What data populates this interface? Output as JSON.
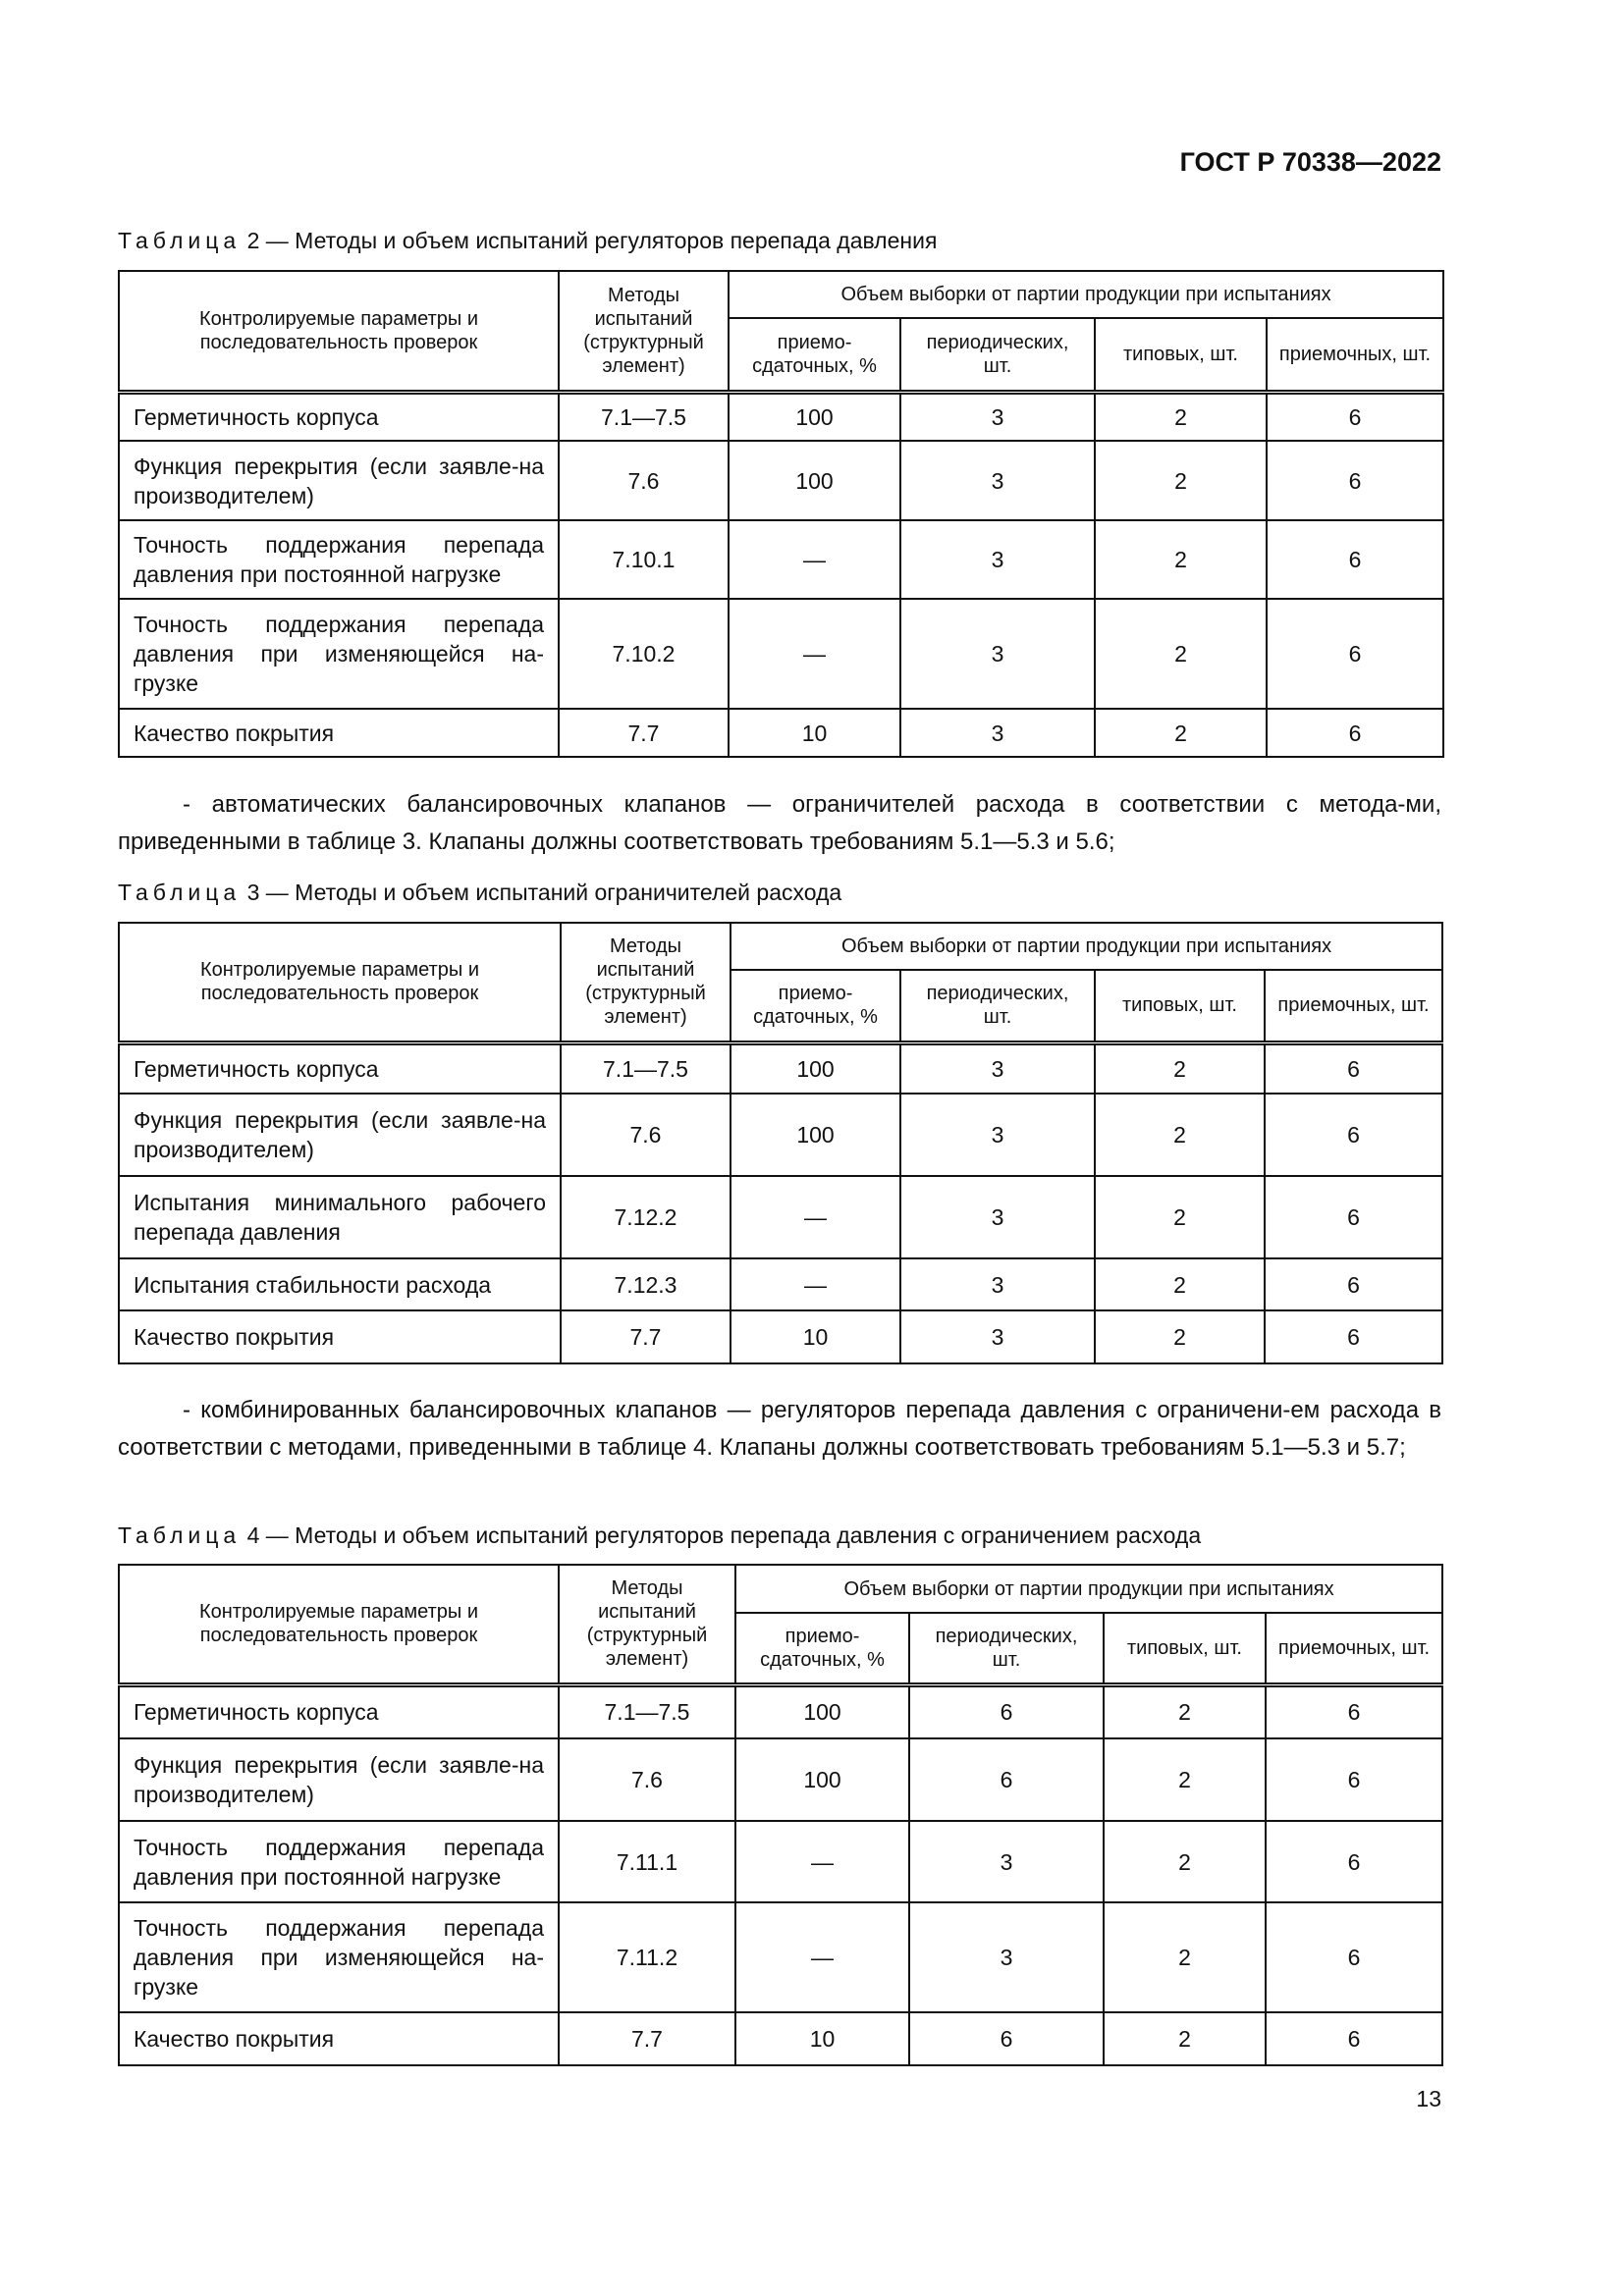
{
  "header": {
    "standard": "ГОСТ Р 70338—2022"
  },
  "page_number": "13",
  "header_labels": {
    "params": "Контролируемые параметры и последовательность проверок",
    "methods": "Методы испытаний (структурный элемент)",
    "volume": "Объем выборки от партии продукции при испытаниях",
    "acceptance": "приемо-сдаточных, %",
    "periodic": "периодических, шт.",
    "type": "типовых, шт.",
    "receiving": "приемочных, шт."
  },
  "tables": [
    {
      "label": "Таблица",
      "number": "2",
      "title": "— Методы и объем испытаний регуляторов перепада давления",
      "rows": [
        [
          "Герметичность корпуса",
          "7.1—7.5",
          "100",
          "3",
          "2",
          "6"
        ],
        [
          "Функция перекрытия (если заявле-на производителем)",
          "7.6",
          "100",
          "3",
          "2",
          "6"
        ],
        [
          "Точность поддержания перепада давления при постоянной нагрузке",
          "7.10.1",
          "—",
          "3",
          "2",
          "6"
        ],
        [
          "Точность поддержания перепада давления при изменяющейся на-грузке",
          "7.10.2",
          "—",
          "3",
          "2",
          "6"
        ],
        [
          "Качество покрытия",
          "7.7",
          "10",
          "3",
          "2",
          "6"
        ]
      ]
    },
    {
      "label": "Таблица",
      "number": "3",
      "title": "— Методы и объем испытаний ограничителей расхода",
      "rows": [
        [
          "Герметичность корпуса",
          "7.1—7.5",
          "100",
          "3",
          "2",
          "6"
        ],
        [
          "Функция перекрытия (если заявле-на производителем)",
          "7.6",
          "100",
          "3",
          "2",
          "6"
        ],
        [
          "Испытания минимального рабочего перепада давления",
          "7.12.2",
          "—",
          "3",
          "2",
          "6"
        ],
        [
          "Испытания стабильности расхода",
          "7.12.3",
          "—",
          "3",
          "2",
          "6"
        ],
        [
          "Качество покрытия",
          "7.7",
          "10",
          "3",
          "2",
          "6"
        ]
      ]
    },
    {
      "label": "Таблица",
      "number": "4",
      "title": "— Методы и объем испытаний регуляторов перепада давления с ограничением расхода",
      "rows": [
        [
          "Герметичность корпуса",
          "7.1—7.5",
          "100",
          "6",
          "2",
          "6"
        ],
        [
          "Функция перекрытия (если заявле-на производителем)",
          "7.6",
          "100",
          "6",
          "2",
          "6"
        ],
        [
          "Точность поддержания перепада давления при постоянной нагрузке",
          "7.11.1",
          "—",
          "3",
          "2",
          "6"
        ],
        [
          "Точность поддержания перепада давления при изменяющейся на-грузке",
          "7.11.2",
          "—",
          "3",
          "2",
          "6"
        ],
        [
          "Качество покрытия",
          "7.7",
          "10",
          "6",
          "2",
          "6"
        ]
      ]
    }
  ],
  "paragraphs": [
    "- автоматических балансировочных клапанов — ограничителей расхода в соответствии с метода-ми, приведенными в таблице 3. Клапаны должны соответствовать требованиям 5.1—5.3 и 5.6;",
    "- комбинированных балансировочных клапанов — регуляторов перепада давления с ограничени-ем расхода в соответствии с методами, приведенными в таблице 4. Клапаны должны соответствовать требованиям 5.1—5.3 и 5.7;"
  ]
}
